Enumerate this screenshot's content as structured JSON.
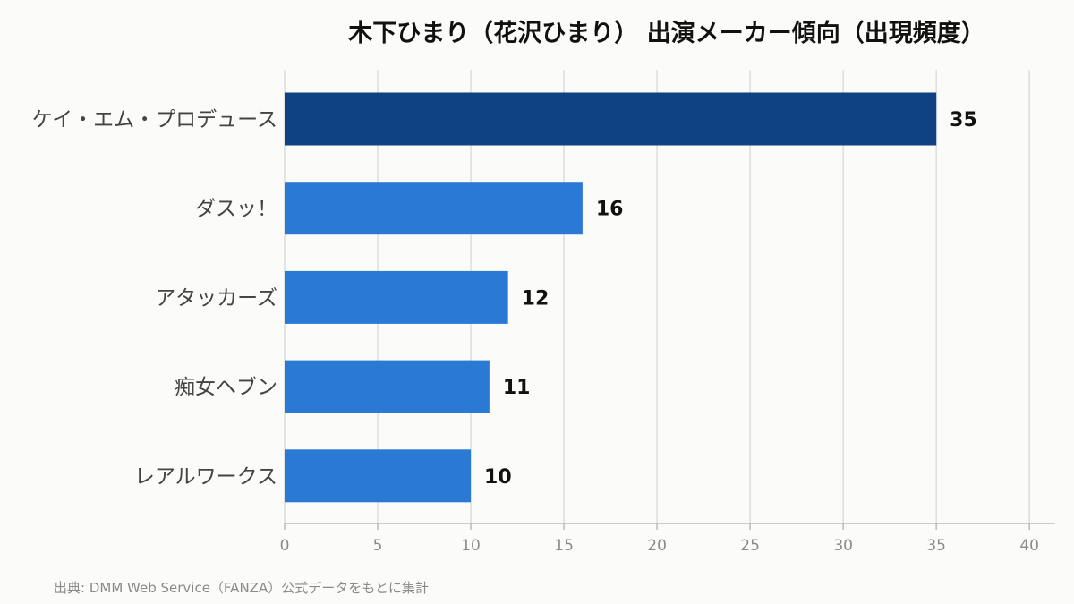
{
  "chart_data": {
    "type": "bar",
    "orientation": "horizontal",
    "title": "木下ひまり（花沢ひまり） 出演メーカー傾向（出現頻度）",
    "categories": [
      "ケイ・エム・プロデュース",
      "ダスッ！",
      "アタッカーズ",
      "痴女ヘブン",
      "レアルワークス"
    ],
    "values": [
      35,
      16,
      12,
      11,
      10
    ],
    "value_labels": [
      "35",
      "16",
      "12",
      "11",
      "10"
    ],
    "xlim": [
      0,
      41
    ],
    "xticks": [
      0,
      5,
      10,
      15,
      20,
      25,
      30,
      35,
      40
    ],
    "xtick_labels": [
      "0",
      "5",
      "10",
      "15",
      "20",
      "25",
      "30",
      "35",
      "40"
    ],
    "grid": "vertical",
    "colors": {
      "top_bar": "#0f4282",
      "bar": "#2a79d5",
      "grid": "#dddddd",
      "axis": "#bbbbbb"
    },
    "source": "出典: DMM Web Service（FANZA）公式データをもとに集計"
  }
}
